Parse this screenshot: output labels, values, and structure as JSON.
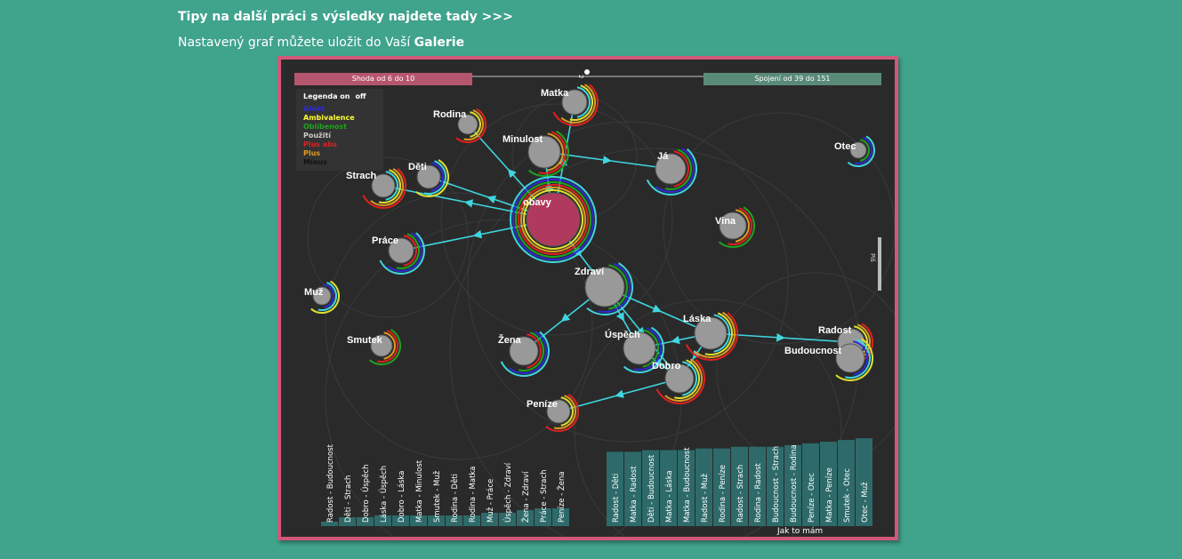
{
  "header": {
    "tips": "Tipy na další práci s výsledky najdete tady >>>",
    "save_prefix": "Nastavený graf můžete uložit do Vaší ",
    "save_link": "Galerie"
  },
  "slider": {
    "left_label": "Shoda od 6 do 10",
    "right_label": "Spojení od 39 do 151",
    "value": "2"
  },
  "legend": {
    "title": "Legenda on",
    "off": "off",
    "items": [
      {
        "label": "Afekt",
        "color": "#2b2bd6"
      },
      {
        "label": "Ambivalence",
        "color": "#ffff33"
      },
      {
        "label": "Oblíbenost",
        "color": "#1fa31f"
      },
      {
        "label": "Použití",
        "color": "#cccccc"
      },
      {
        "label": "Plus abs",
        "color": "#e02020"
      },
      {
        "label": "Plus",
        "color": "#e09a20"
      },
      {
        "label": "Mínus",
        "color": "#111111"
      }
    ]
  },
  "side_label": "Piš",
  "nodes": [
    {
      "label": "Matka"
    },
    {
      "label": "Rodina"
    },
    {
      "label": "Minulost"
    },
    {
      "label": "Já"
    },
    {
      "label": "Otec"
    },
    {
      "label": "Děti"
    },
    {
      "label": "Strach"
    },
    {
      "label": "obavy"
    },
    {
      "label": "Vina"
    },
    {
      "label": "Práce"
    },
    {
      "label": "Zdraví"
    },
    {
      "label": "Muž"
    },
    {
      "label": "Láska"
    },
    {
      "label": "Radost"
    },
    {
      "label": "Smutek"
    },
    {
      "label": "Žena"
    },
    {
      "label": "Úspěch"
    },
    {
      "label": "Budoucnost"
    },
    {
      "label": "Dobro"
    },
    {
      "label": "Peníze"
    }
  ],
  "left_bars": {
    "labels": [
      "Radost - Budoucnost",
      "Děti - Strach",
      "Dobro - Úspěch",
      "Láska - Úspěch",
      "Dobro - Láska",
      "Matka - Minulost",
      "Smutek - Muž",
      "Rodina - Děti",
      "Rodina - Matka",
      "Muž - Práce",
      "Úspěch - Zdraví",
      "Žena - Zdraví",
      "Práce - Strach",
      "Peníze - Žena"
    ],
    "values": [
      0.05,
      0.1,
      0.1,
      0.12,
      0.12,
      0.12,
      0.12,
      0.12,
      0.12,
      0.15,
      0.15,
      0.18,
      0.2,
      0.2
    ]
  },
  "right_bars": {
    "labels": [
      "Radost - Děti",
      "Matka - Radost",
      "Děti - Budoucnost",
      "Matka - Láska",
      "Matka - Budoucnost",
      "Radost - Muž",
      "Rodina - Peníze",
      "Radost - Strach",
      "Rodina - Radost",
      "Budoucnost - Strach",
      "Budoucnost - Rodina",
      "Peníze - Otec",
      "Matka - Peníze",
      "Smutek - Otec",
      "Otec - Muž"
    ],
    "values": [
      0.88,
      0.88,
      0.9,
      0.9,
      0.9,
      0.92,
      0.92,
      0.94,
      0.94,
      0.94,
      0.96,
      0.98,
      1.0,
      1.02,
      1.04
    ],
    "axis_label": "Jak to mám"
  }
}
